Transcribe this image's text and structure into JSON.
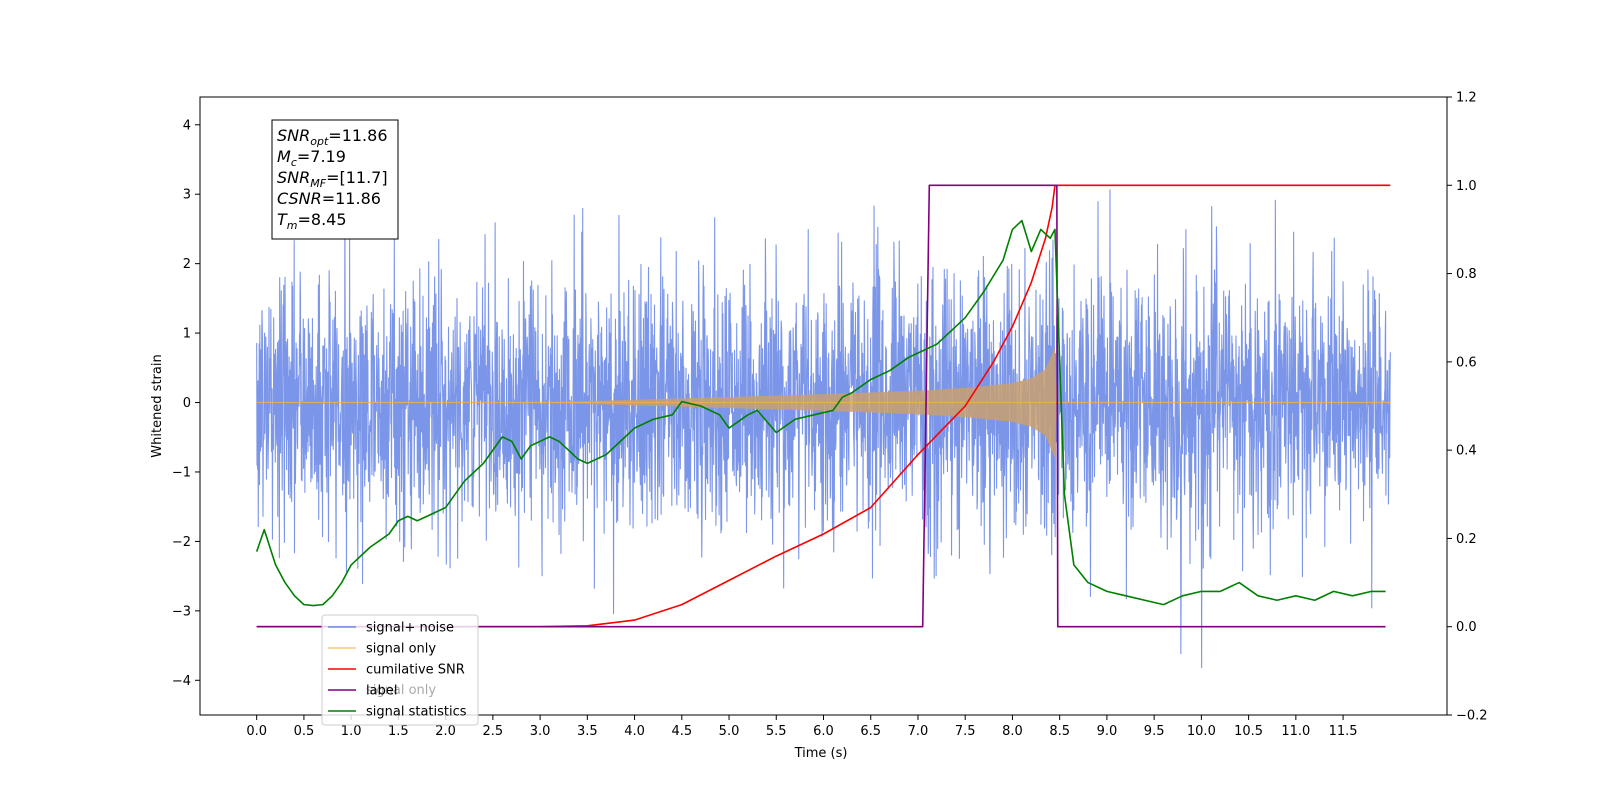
{
  "chart_data": {
    "type": "line",
    "xlabel": "Time (s)",
    "ylabel": "Whitened strain",
    "xlim": [
      -0.6,
      12.6
    ],
    "ylim_left": [
      -4.5,
      4.4
    ],
    "ylim_right": [
      -0.2,
      1.2
    ],
    "x_ticks": [
      0.0,
      0.5,
      1.0,
      1.5,
      2.0,
      2.5,
      3.0,
      3.5,
      4.0,
      4.5,
      5.0,
      5.5,
      6.0,
      6.5,
      7.0,
      7.5,
      8.0,
      8.5,
      9.0,
      9.5,
      10.0,
      10.5,
      11.0,
      11.5
    ],
    "x_tick_labels": [
      "0.0",
      "0.5",
      "1.0",
      "1.5",
      "2.0",
      "2.5",
      "3.0",
      "3.5",
      "4.0",
      "4.5",
      "5.0",
      "5.5",
      "6.0",
      "6.5",
      "7.0",
      "7.5",
      "8.0",
      "8.5",
      "9.0",
      "9.5",
      "10.0",
      "10.5",
      "11.0",
      "11.5"
    ],
    "y_ticks_left": [
      -4,
      -3,
      -2,
      -1,
      0,
      1,
      2,
      3,
      4
    ],
    "y_tick_labels_left": [
      "−4",
      "−3",
      "−2",
      "−1",
      "0",
      "1",
      "2",
      "3",
      "4"
    ],
    "y_ticks_right": [
      -0.2,
      0.0,
      0.2,
      0.4,
      0.6,
      0.8,
      1.0,
      1.2
    ],
    "y_tick_labels_right": [
      "−0.2",
      "0.0",
      "0.2",
      "0.4",
      "0.6",
      "0.8",
      "1.0",
      "1.2"
    ],
    "grid": false,
    "legend_position": "lower-left",
    "legend_overlap_text": "signal only",
    "series": [
      {
        "name": "signal+ noise",
        "axis": "left",
        "color": "#6d8be6",
        "type": "noise_band",
        "x_range": [
          0.0,
          12.0
        ],
        "typical_peak": 2.4,
        "max_peak": 3.5,
        "min_trough": -4.1
      },
      {
        "name": "signal only",
        "axis": "left",
        "color": "#f5b041",
        "type": "chirp_envelope",
        "x_range": [
          0.0,
          12.0
        ],
        "merger_time": 8.45,
        "envelope_x": [
          0.0,
          3.0,
          4.0,
          5.0,
          6.0,
          7.0,
          7.5,
          8.0,
          8.2,
          8.35,
          8.45,
          8.47
        ],
        "envelope_y": [
          0.0,
          0.0,
          0.04,
          0.08,
          0.12,
          0.17,
          0.21,
          0.28,
          0.35,
          0.48,
          0.8,
          0.0
        ]
      },
      {
        "name": "cumilative SNR",
        "axis": "right",
        "color": "#ff0000",
        "x": [
          0.0,
          3.0,
          3.5,
          4.0,
          4.5,
          5.0,
          5.5,
          6.0,
          6.5,
          7.0,
          7.5,
          7.8,
          8.0,
          8.2,
          8.35,
          8.42,
          8.45,
          8.47,
          12.0
        ],
        "y": [
          0.0,
          0.0,
          0.002,
          0.015,
          0.05,
          0.105,
          0.16,
          0.21,
          0.27,
          0.39,
          0.5,
          0.6,
          0.68,
          0.78,
          0.88,
          0.95,
          1.0,
          1.0,
          1.0
        ]
      },
      {
        "name": "label",
        "axis": "right",
        "color": "#800080",
        "x": [
          0.0,
          7.05,
          7.12,
          8.47,
          8.48,
          8.5,
          11.95
        ],
        "y": [
          0.0,
          0.0,
          1.0,
          1.0,
          0.0,
          0.0,
          0.0
        ]
      },
      {
        "name": "signal statistics",
        "axis": "right",
        "color": "#008000",
        "x": [
          0.0,
          0.08,
          0.2,
          0.3,
          0.4,
          0.5,
          0.6,
          0.7,
          0.8,
          0.9,
          1.0,
          1.2,
          1.4,
          1.5,
          1.6,
          1.7,
          1.8,
          2.0,
          2.2,
          2.4,
          2.5,
          2.6,
          2.7,
          2.8,
          2.9,
          3.0,
          3.1,
          3.2,
          3.4,
          3.5,
          3.7,
          3.8,
          4.0,
          4.2,
          4.4,
          4.5,
          4.7,
          4.9,
          5.0,
          5.2,
          5.3,
          5.5,
          5.7,
          5.9,
          6.1,
          6.2,
          6.3,
          6.5,
          6.7,
          6.9,
          7.0,
          7.2,
          7.4,
          7.5,
          7.7,
          7.9,
          8.0,
          8.1,
          8.2,
          8.3,
          8.4,
          8.45,
          8.55,
          8.65,
          8.8,
          9.0,
          9.2,
          9.4,
          9.6,
          9.8,
          10.0,
          10.2,
          10.4,
          10.6,
          10.8,
          11.0,
          11.2,
          11.4,
          11.6,
          11.8,
          11.95
        ],
        "y": [
          0.17,
          0.22,
          0.14,
          0.1,
          0.07,
          0.05,
          0.048,
          0.05,
          0.07,
          0.1,
          0.14,
          0.18,
          0.21,
          0.24,
          0.25,
          0.24,
          0.25,
          0.27,
          0.33,
          0.37,
          0.4,
          0.43,
          0.42,
          0.38,
          0.41,
          0.42,
          0.43,
          0.42,
          0.38,
          0.37,
          0.39,
          0.41,
          0.45,
          0.47,
          0.48,
          0.51,
          0.5,
          0.48,
          0.45,
          0.48,
          0.49,
          0.44,
          0.47,
          0.48,
          0.49,
          0.52,
          0.53,
          0.56,
          0.58,
          0.61,
          0.62,
          0.64,
          0.68,
          0.7,
          0.76,
          0.83,
          0.9,
          0.92,
          0.85,
          0.9,
          0.88,
          0.9,
          0.3,
          0.14,
          0.1,
          0.08,
          0.07,
          0.06,
          0.05,
          0.07,
          0.08,
          0.08,
          0.1,
          0.07,
          0.06,
          0.07,
          0.06,
          0.08,
          0.07,
          0.08,
          0.08
        ]
      }
    ],
    "annotation": [
      {
        "var": "SNR",
        "sub": "opt",
        "value": "=11.86"
      },
      {
        "var": "M",
        "sub": "c",
        "value": "=7.19"
      },
      {
        "var": "SNR",
        "sub": "MF",
        "value": "=[11.7]"
      },
      {
        "var": "CSNR",
        "sub": "",
        "value": "=11.86"
      },
      {
        "var": "T",
        "sub": "m",
        "value": "=8.45"
      }
    ]
  }
}
